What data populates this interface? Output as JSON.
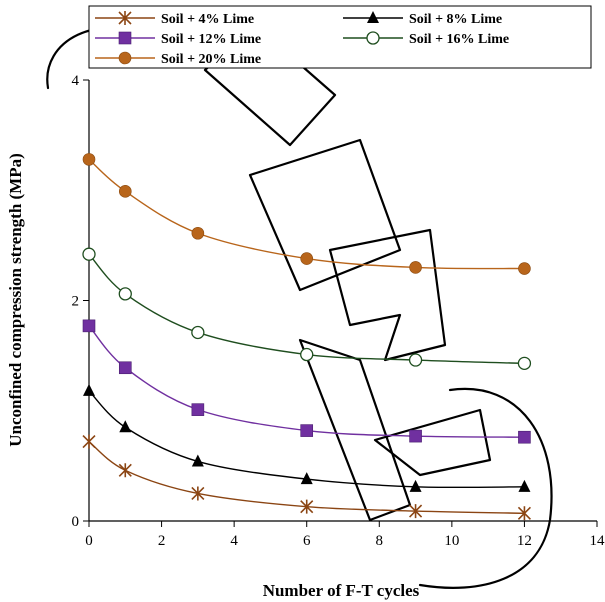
{
  "chart_data": {
    "type": "line",
    "title": "",
    "xlabel": "Number of F-T cycles",
    "ylabel": "Unconfined compression strength (MPa)",
    "xlim": [
      0,
      14
    ],
    "ylim": [
      0,
      4
    ],
    "xticks": [
      0,
      2,
      4,
      6,
      8,
      10,
      12,
      14
    ],
    "yticks": [
      0,
      2,
      4
    ],
    "grid": false,
    "legend_position": "top",
    "x": [
      0,
      1,
      3,
      6,
      9,
      12
    ],
    "series": [
      {
        "name": "Soil + 4% Lime",
        "color": "#8B4513",
        "marker": "star",
        "values": [
          0.72,
          0.46,
          0.25,
          0.13,
          0.09,
          0.07
        ]
      },
      {
        "name": "Soil + 8% Lime",
        "color": "#000000",
        "marker": "triangle",
        "values": [
          1.18,
          0.85,
          0.54,
          0.38,
          0.31,
          0.31
        ]
      },
      {
        "name": "Soil + 12% Lime",
        "color": "#7030A0",
        "marker": "square",
        "values": [
          1.77,
          1.39,
          1.01,
          0.82,
          0.77,
          0.76
        ]
      },
      {
        "name": "Soil + 16% Lime",
        "color": "#1F4E1F",
        "marker": "open-circle",
        "values": [
          2.42,
          2.06,
          1.71,
          1.51,
          1.46,
          1.43
        ]
      },
      {
        "name": "Soil + 20% Lime",
        "color": "#B8651B",
        "marker": "filled-circle",
        "values": [
          3.28,
          2.99,
          2.61,
          2.38,
          2.3,
          2.29
        ]
      }
    ]
  }
}
